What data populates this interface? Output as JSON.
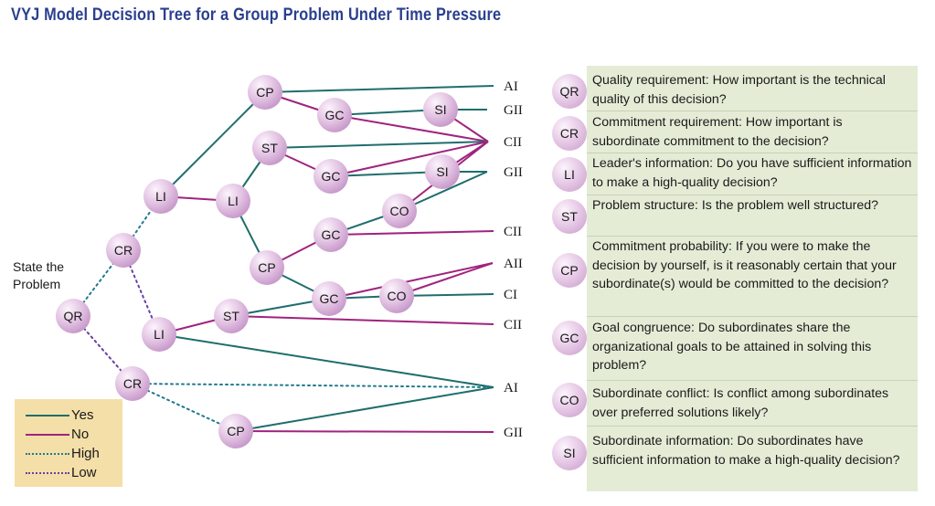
{
  "title": "VYJ Model Decision Tree for a Group Problem Under Time Pressure",
  "start_label": "State the Problem",
  "colors": {
    "yes": "#1f6e6c",
    "no": "#a0237e",
    "high": "#1f7a8c",
    "low": "#6a3fa3",
    "node": "#dcb6dc"
  },
  "nodes": [
    {
      "id": "QR",
      "label": "QR"
    },
    {
      "id": "CR1",
      "label": "CR"
    },
    {
      "id": "CR2",
      "label": "CR"
    },
    {
      "id": "LI1",
      "label": "LI"
    },
    {
      "id": "LI2",
      "label": "LI"
    },
    {
      "id": "LI3",
      "label": "LI"
    },
    {
      "id": "CP1",
      "label": "CP"
    },
    {
      "id": "CP2",
      "label": "CP"
    },
    {
      "id": "CP3",
      "label": "CP"
    },
    {
      "id": "ST1",
      "label": "ST"
    },
    {
      "id": "ST2",
      "label": "ST"
    },
    {
      "id": "GC1",
      "label": "GC"
    },
    {
      "id": "GC2",
      "label": "GC"
    },
    {
      "id": "GC3",
      "label": "GC"
    },
    {
      "id": "GC4",
      "label": "GC"
    },
    {
      "id": "SI1",
      "label": "SI"
    },
    {
      "id": "SI2",
      "label": "SI"
    },
    {
      "id": "CO1",
      "label": "CO"
    },
    {
      "id": "CO2",
      "label": "CO"
    }
  ],
  "outcomes": [
    {
      "id": "O_AI1",
      "label": "AI"
    },
    {
      "id": "O_GII1",
      "label": "GII"
    },
    {
      "id": "O_CII1",
      "label": "CII"
    },
    {
      "id": "O_GII2",
      "label": "GII"
    },
    {
      "id": "O_CII2",
      "label": "CII"
    },
    {
      "id": "O_AII",
      "label": "AII"
    },
    {
      "id": "O_CI",
      "label": "CI"
    },
    {
      "id": "O_CII3",
      "label": "CII"
    },
    {
      "id": "O_AI2",
      "label": "AI"
    },
    {
      "id": "O_GII3",
      "label": "GII"
    }
  ],
  "edges": [
    {
      "from": "QR",
      "to": "CR1",
      "type": "high"
    },
    {
      "from": "QR",
      "to": "CR2",
      "type": "low"
    },
    {
      "from": "CR1",
      "to": "LI1",
      "type": "high"
    },
    {
      "from": "CR1",
      "to": "LI3",
      "type": "low"
    },
    {
      "from": "LI1",
      "to": "CP1",
      "type": "yes"
    },
    {
      "from": "LI1",
      "to": "LI2",
      "type": "no"
    },
    {
      "from": "CP1",
      "to": "O_AI1",
      "type": "yes"
    },
    {
      "from": "CP1",
      "to": "GC1",
      "type": "no"
    },
    {
      "from": "GC1",
      "to": "SI1",
      "type": "yes"
    },
    {
      "from": "GC1",
      "to": "O_CII1",
      "type": "no"
    },
    {
      "from": "SI1",
      "to": "O_GII1",
      "type": "yes"
    },
    {
      "from": "SI1",
      "to": "O_CII1",
      "type": "no"
    },
    {
      "from": "LI2",
      "to": "ST1",
      "type": "yes"
    },
    {
      "from": "LI2",
      "to": "CP2",
      "type": "yes"
    },
    {
      "from": "ST1",
      "to": "O_CII1",
      "type": "yes"
    },
    {
      "from": "ST1",
      "to": "GC2",
      "type": "no"
    },
    {
      "from": "GC2",
      "to": "SI2",
      "type": "yes"
    },
    {
      "from": "GC2",
      "to": "O_CII1",
      "type": "no"
    },
    {
      "from": "SI2",
      "to": "O_GII2",
      "type": "yes"
    },
    {
      "from": "SI2",
      "to": "O_CII1",
      "type": "no"
    },
    {
      "from": "CP2",
      "to": "GC3",
      "type": "no"
    },
    {
      "from": "CP2",
      "to": "GC4",
      "type": "yes"
    },
    {
      "from": "GC3",
      "to": "CO1",
      "type": "yes"
    },
    {
      "from": "GC3",
      "to": "O_CII2",
      "type": "no"
    },
    {
      "from": "CO1",
      "to": "O_GII2",
      "type": "yes"
    },
    {
      "from": "CO1",
      "to": "O_CII1",
      "type": "no"
    },
    {
      "from": "GC4",
      "to": "O_AII",
      "type": "no"
    },
    {
      "from": "GC4",
      "to": "CO2",
      "type": "yes"
    },
    {
      "from": "CO2",
      "to": "O_CI",
      "type": "yes"
    },
    {
      "from": "CO2",
      "to": "O_AII",
      "type": "no"
    },
    {
      "from": "LI3",
      "to": "ST2",
      "type": "no"
    },
    {
      "from": "LI3",
      "to": "O_AI2",
      "type": "yes"
    },
    {
      "from": "ST2",
      "to": "GC4",
      "type": "yes"
    },
    {
      "from": "ST2",
      "to": "O_CII3",
      "type": "no"
    },
    {
      "from": "CR2",
      "to": "O_AI2",
      "type": "high"
    },
    {
      "from": "CR2",
      "to": "CP3",
      "type": "high"
    },
    {
      "from": "CP3",
      "to": "O_AI2",
      "type": "yes"
    },
    {
      "from": "CP3",
      "to": "O_GII3",
      "type": "no"
    }
  ],
  "legend": [
    {
      "label": "Yes",
      "type": "yes"
    },
    {
      "label": "No",
      "type": "no"
    },
    {
      "label": "High",
      "type": "high"
    },
    {
      "label": "Low",
      "type": "low"
    }
  ],
  "abbreviations": [
    {
      "abbr": "QR",
      "text": "Quality requirement:  How important is the technical quality of this decision?"
    },
    {
      "abbr": "CR",
      "text": "Commitment requirement:  How important is subordinate commitment to the decision?"
    },
    {
      "abbr": "LI",
      "text": "Leader's information:  Do you have sufficient information to make a high-quality decision?"
    },
    {
      "abbr": "ST",
      "text": "Problem structure: Is the problem well structured?"
    },
    {
      "abbr": "CP",
      "text": "Commitment probability:  If you were to make the decision by yourself, is it reasonably certain that  your subordinate(s) would be committed to the decision?"
    },
    {
      "abbr": "GC",
      "text": "Goal congruence:  Do subordinates share the organizational goals to be attained in solving this problem?"
    },
    {
      "abbr": "CO",
      "text": "Subordinate conflict: Is conflict among subordinates over preferred solutions likely?"
    },
    {
      "abbr": "SI",
      "text": "Subordinate information: Do subordinates have sufficient information to make a high-quality decision?"
    }
  ]
}
